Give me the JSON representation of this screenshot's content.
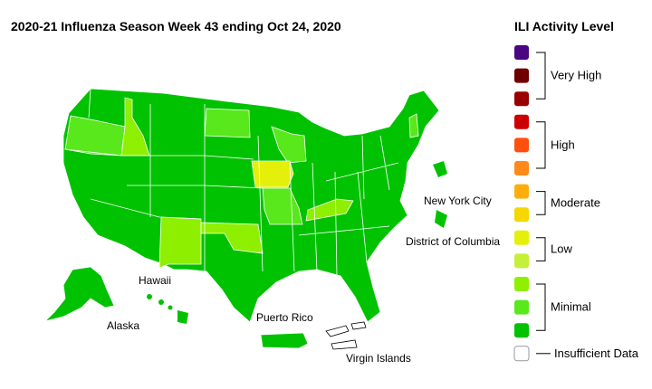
{
  "title": "2020-21 Influenza Season Week 43 ending Oct 24, 2020",
  "legend": {
    "title": "ILI Activity Level",
    "groups": [
      {
        "label": "Very High",
        "colors": [
          "#4b0682",
          "#6e0000",
          "#990000"
        ]
      },
      {
        "label": "High",
        "colors": [
          "#cc0000",
          "#ff4f0d",
          "#ff8a1a"
        ]
      },
      {
        "label": "Moderate",
        "colors": [
          "#ffad0d",
          "#f5d800"
        ]
      },
      {
        "label": "Low",
        "colors": [
          "#e5f00a",
          "#c4f03a"
        ]
      },
      {
        "label": "Minimal",
        "colors": [
          "#8ef000",
          "#58e81b",
          "#00c200"
        ]
      },
      {
        "label": "Insufficient Data",
        "colors": [
          "#ffffff"
        ]
      }
    ]
  },
  "regions": {
    "hawaii": "Hawaii",
    "alaska": "Alaska",
    "puerto_rico": "Puerto Rico",
    "virgin_islands": "Virgin Islands",
    "new_york_city": "New York City",
    "district_of_columbia": "District of Columbia"
  }
}
